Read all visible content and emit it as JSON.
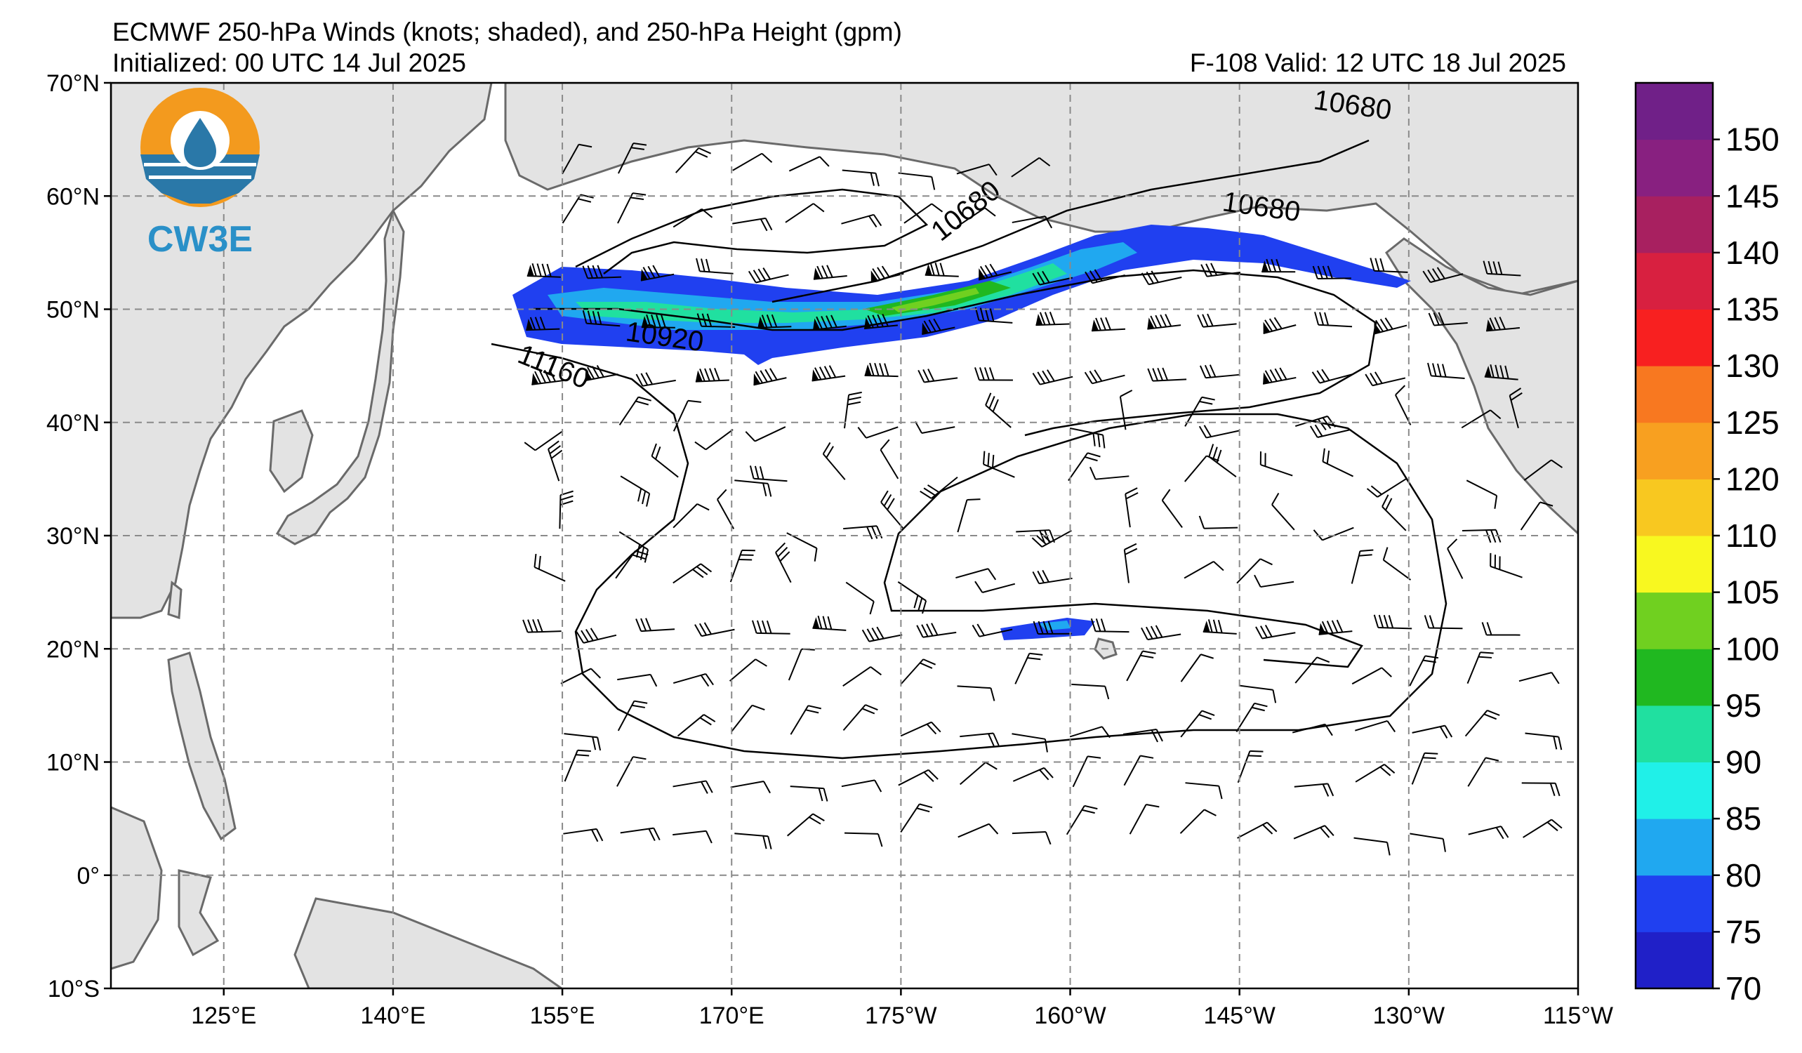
{
  "header": {
    "title": "ECMWF 250-hPa Winds (knots; shaded), and 250-hPa Height (gpm)",
    "initialized": "Initialized: 00 UTC 14 Jul 2025",
    "valid": "F-108  Valid: 12 UTC 18 Jul 2025"
  },
  "logo": {
    "text": "CW3E"
  },
  "map": {
    "projection": "equirectangular",
    "lon_range": [
      115,
      245
    ],
    "lat_range": [
      -10,
      70
    ],
    "lat_ticks": [
      "70°N",
      "60°N",
      "50°N",
      "40°N",
      "30°N",
      "20°N",
      "10°N",
      "0°",
      "10°S"
    ],
    "lon_ticks": [
      "125°E",
      "140°E",
      "155°E",
      "170°E",
      "175°W",
      "160°W",
      "145°W",
      "130°W",
      "115°W"
    ],
    "grid": true,
    "land_color": "#e3e3e3",
    "ocean_color": "#ffffff",
    "height_contours": [
      {
        "value": 10680,
        "label": "10680"
      },
      {
        "value": 10920,
        "label": "10920"
      },
      {
        "value": 11160,
        "label": "11160"
      }
    ],
    "jet_core": "North Pacific jet near 45°N–55°N with peak winds 95–100 knots south of the Aleutians",
    "secondary_jet": "Small 70–80 knot wind maximum near 21°N, 160°W (Hawaii)"
  },
  "colorbar": {
    "unit": "knots",
    "levels": [
      70,
      75,
      80,
      85,
      90,
      95,
      100,
      105,
      110,
      120,
      125,
      130,
      135,
      140,
      145,
      150
    ],
    "colors": [
      "#2020c8",
      "#2040f0",
      "#20a8f0",
      "#20f0e8",
      "#20e0a0",
      "#20b820",
      "#70d020",
      "#f8f820",
      "#f8c820",
      "#f8a020",
      "#f87820",
      "#f82020",
      "#d82040",
      "#a82060",
      "#882080",
      "#702088"
    ],
    "labels": [
      "70",
      "75",
      "80",
      "85",
      "90",
      "95",
      "100",
      "105",
      "110",
      "120",
      "125",
      "130",
      "135",
      "140",
      "145",
      "150"
    ]
  }
}
